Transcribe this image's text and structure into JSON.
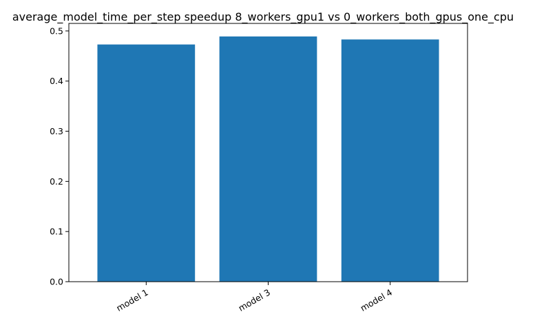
{
  "chart_data": {
    "type": "bar",
    "title": "average_model_time_per_step speedup 8_workers_gpu1 vs 0_workers_both_gpus_one_cpu",
    "xlabel": "",
    "ylabel": "",
    "categories": [
      "model 1",
      "model 3",
      "model 4"
    ],
    "values": [
      0.473,
      0.489,
      0.483
    ],
    "ylim": [
      0,
      0.515
    ],
    "yticks": [
      0.0,
      0.1,
      0.2,
      0.3,
      0.4,
      0.5
    ],
    "ytick_labels": [
      "0.0",
      "0.1",
      "0.2",
      "0.3",
      "0.4",
      "0.5"
    ],
    "xtick_rotation": "30 degrees, right-aligned",
    "grid": false,
    "legend": "none",
    "colors": {
      "bar": "#1f77b4"
    }
  }
}
